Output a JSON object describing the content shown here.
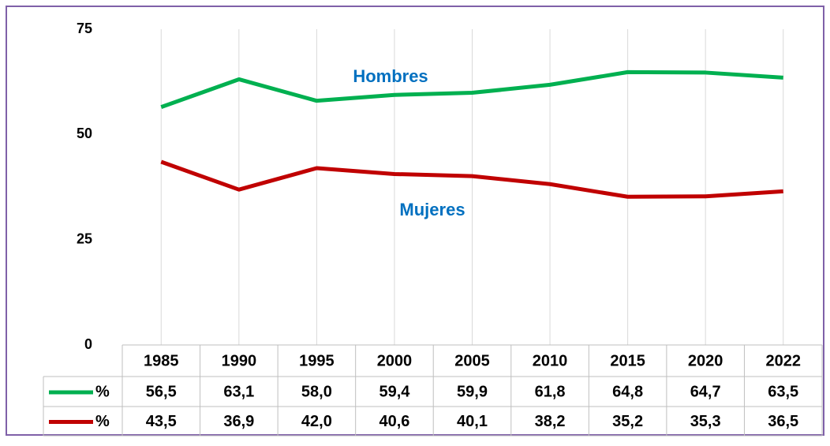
{
  "chart_data": {
    "type": "line",
    "categories": [
      "1985",
      "1990",
      "1995",
      "2000",
      "2005",
      "2010",
      "2015",
      "2020",
      "2022"
    ],
    "series": [
      {
        "name": "%",
        "color": "#00b050",
        "values": [
          56.5,
          63.1,
          58.0,
          59.4,
          59.9,
          61.8,
          64.8,
          64.7,
          63.5
        ],
        "value_labels": [
          "56,5",
          "63,1",
          "58,0",
          "59,4",
          "59,9",
          "61,8",
          "64,8",
          "64,7",
          "63,5"
        ]
      },
      {
        "name": "%",
        "color": "#c00000",
        "values": [
          43.5,
          36.9,
          42.0,
          40.6,
          40.1,
          38.2,
          35.2,
          35.3,
          36.5
        ],
        "value_labels": [
          "43,5",
          "36,9",
          "42,0",
          "40,6",
          "40,1",
          "38,2",
          "35,2",
          "35,3",
          "36,5"
        ]
      }
    ],
    "annotations": [
      "Hombres",
      "Mujeres"
    ],
    "annotation_color": "#0070c0",
    "ylim": [
      0,
      75
    ],
    "yticks": [
      0,
      25,
      50,
      75
    ],
    "grid": true
  }
}
